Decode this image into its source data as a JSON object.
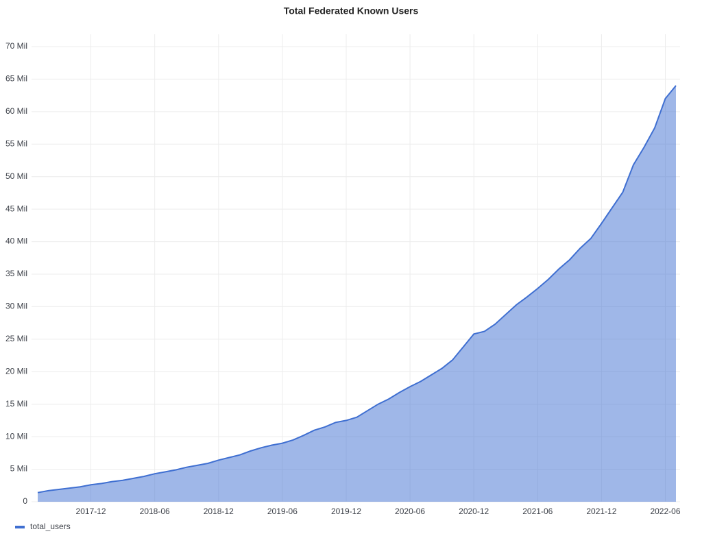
{
  "chart_data": {
    "type": "area",
    "title": "Total Federated Known Users",
    "x": [
      "2017-07",
      "2017-08",
      "2017-09",
      "2017-10",
      "2017-11",
      "2017-12",
      "2018-01",
      "2018-02",
      "2018-03",
      "2018-04",
      "2018-05",
      "2018-06",
      "2018-07",
      "2018-08",
      "2018-09",
      "2018-10",
      "2018-11",
      "2018-12",
      "2019-01",
      "2019-02",
      "2019-03",
      "2019-04",
      "2019-05",
      "2019-06",
      "2019-07",
      "2019-08",
      "2019-09",
      "2019-10",
      "2019-11",
      "2019-12",
      "2020-01",
      "2020-02",
      "2020-03",
      "2020-04",
      "2020-05",
      "2020-06",
      "2020-07",
      "2020-08",
      "2020-09",
      "2020-10",
      "2020-11",
      "2020-12",
      "2021-01",
      "2021-02",
      "2021-03",
      "2021-04",
      "2021-05",
      "2021-06",
      "2021-07",
      "2021-08",
      "2021-09",
      "2021-10",
      "2021-11",
      "2021-12",
      "2022-01",
      "2022-02",
      "2022-03",
      "2022-04",
      "2022-05",
      "2022-06",
      "2022-07"
    ],
    "series": [
      {
        "name": "total_users",
        "color": "#3f6fd1",
        "values": [
          1400000,
          1700000,
          1900000,
          2100000,
          2300000,
          2600000,
          2800000,
          3100000,
          3300000,
          3600000,
          3900000,
          4300000,
          4600000,
          4900000,
          5300000,
          5600000,
          5900000,
          6400000,
          6800000,
          7200000,
          7800000,
          8300000,
          8700000,
          9000000,
          9500000,
          10200000,
          11000000,
          11500000,
          12200000,
          12500000,
          13000000,
          14000000,
          15000000,
          15800000,
          16800000,
          17700000,
          18500000,
          19500000,
          20500000,
          21800000,
          23800000,
          25800000,
          26200000,
          27300000,
          28800000,
          30300000,
          31500000,
          32800000,
          34200000,
          35800000,
          37200000,
          39000000,
          40500000,
          42800000,
          45200000,
          47600000,
          51800000,
          54500000,
          57500000,
          62000000,
          64000000
        ]
      }
    ],
    "xlim": [
      "2017-07",
      "2022-07"
    ],
    "xticks": [
      "2017-12",
      "2018-06",
      "2018-12",
      "2019-06",
      "2019-12",
      "2020-06",
      "2020-12",
      "2021-06",
      "2021-12",
      "2022-06"
    ],
    "ylim": [
      0,
      70000000
    ],
    "yticks": [
      0,
      {
        "value": 5000000,
        "label": "5 Mil"
      },
      {
        "value": 10000000,
        "label": "10 Mil"
      },
      {
        "value": 15000000,
        "label": "15 Mil"
      },
      {
        "value": 20000000,
        "label": "20 Mil"
      },
      {
        "value": 25000000,
        "label": "25 Mil"
      },
      {
        "value": 30000000,
        "label": "30 Mil"
      },
      {
        "value": 35000000,
        "label": "35 Mil"
      },
      {
        "value": 40000000,
        "label": "40 Mil"
      },
      {
        "value": 45000000,
        "label": "45 Mil"
      },
      {
        "value": 50000000,
        "label": "50 Mil"
      },
      {
        "value": 55000000,
        "label": "55 Mil"
      },
      {
        "value": 60000000,
        "label": "60 Mil"
      },
      {
        "value": 65000000,
        "label": "65 Mil"
      },
      {
        "value": 70000000,
        "label": "70 Mil"
      }
    ],
    "grid": true
  }
}
